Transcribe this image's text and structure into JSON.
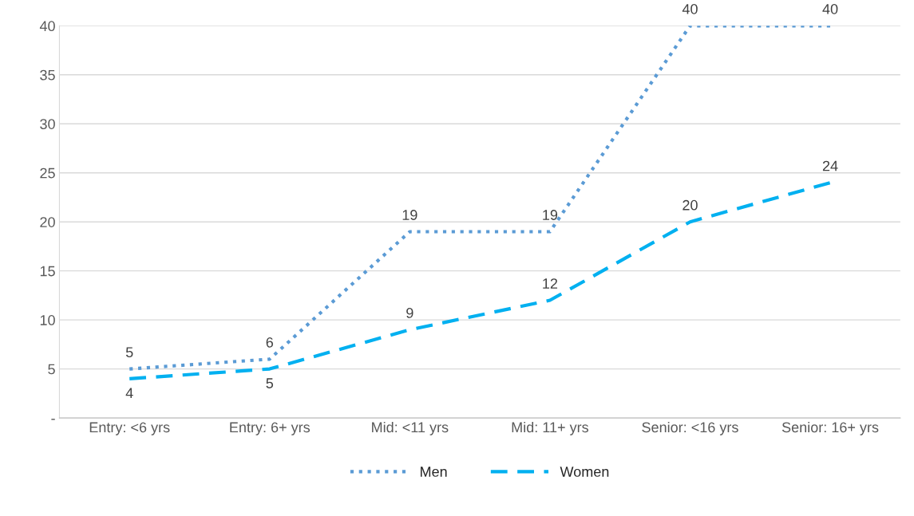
{
  "chart_data": {
    "type": "line",
    "categories": [
      "Entry: <6 yrs",
      "Entry: 6+ yrs",
      "Mid: <11 yrs",
      "Mid: 11+ yrs",
      "Senior: <16 yrs",
      "Senior: 16+ yrs"
    ],
    "series": [
      {
        "name": "Men",
        "color": "#5b9bd5",
        "line_style": "dotted",
        "values": [
          5,
          6,
          19,
          19,
          40,
          40
        ]
      },
      {
        "name": "Women",
        "color": "#00b0f0",
        "line_style": "dashed",
        "values": [
          4,
          5,
          9,
          12,
          20,
          24
        ]
      }
    ],
    "ylim": [
      0,
      40
    ],
    "yticks": [
      {
        "value": 0,
        "label": "-"
      },
      5,
      10,
      15,
      20,
      25,
      30,
      35,
      40
    ],
    "grid": "y",
    "legend": "bottom",
    "data_labels": true,
    "marker": "none"
  }
}
